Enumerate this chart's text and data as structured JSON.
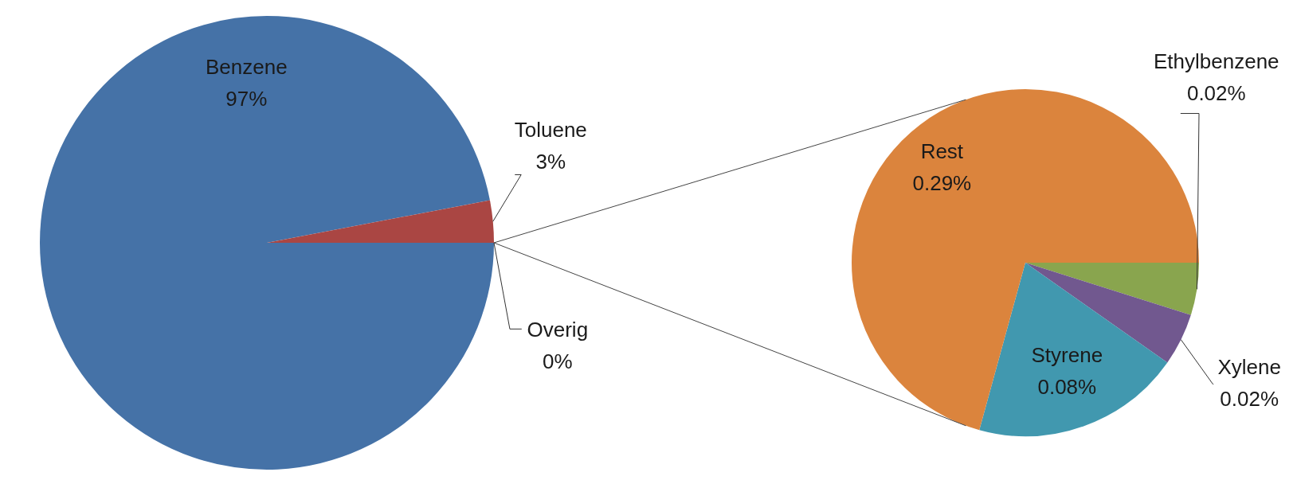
{
  "chart_data": [
    {
      "type": "pie",
      "categories": [
        "Benzene",
        "Toluene",
        "Overig"
      ],
      "values": [
        97,
        3,
        0
      ],
      "value_labels": [
        "97%",
        "3%",
        "0%"
      ],
      "colors": [
        "#4572a7",
        "#aa4643",
        "#a8bde0"
      ]
    },
    {
      "type": "pie",
      "categories": [
        "Ethylbenzene",
        "Xylene",
        "Styrene",
        "Rest"
      ],
      "values": [
        0.02,
        0.02,
        0.08,
        0.29
      ],
      "value_labels": [
        "0.02%",
        "0.02%",
        "0.08%",
        "0.29%"
      ],
      "colors": [
        "#89a54e",
        "#71588f",
        "#4198af",
        "#db843d"
      ]
    }
  ]
}
